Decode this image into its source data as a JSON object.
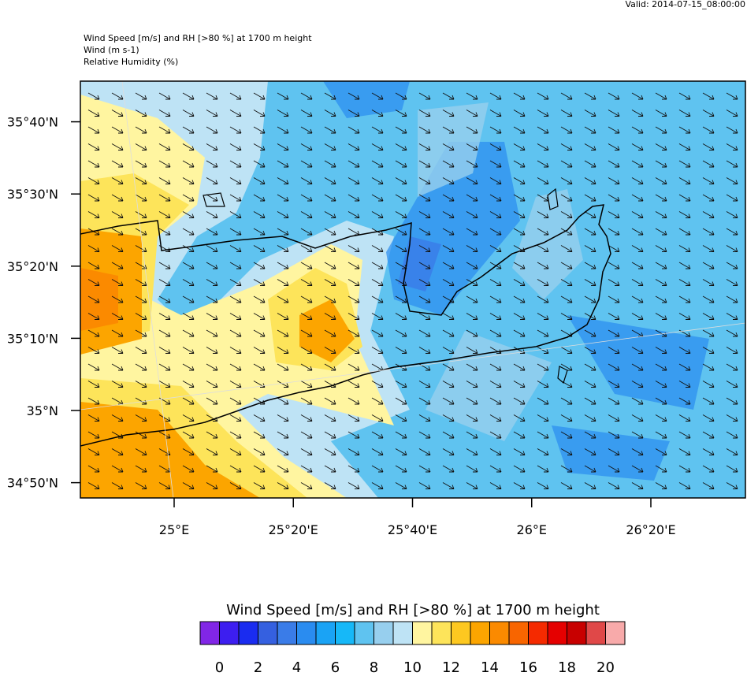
{
  "header": {
    "valid": "Valid: 2014-07-15_08:00:00",
    "title": "Wind Speed [m/s] and RH [>80 %] at 1700 m height",
    "line2": "Wind   (m s-1)",
    "line3": "Relative Humidity   (%)"
  },
  "map": {
    "lat_ticks": [
      {
        "value": 35.6667,
        "label": "35°40'N"
      },
      {
        "value": 35.5,
        "label": "35°30'N"
      },
      {
        "value": 35.3333,
        "label": "35°20'N"
      },
      {
        "value": 35.1667,
        "label": "35°10'N"
      },
      {
        "value": 35,
        "label": "35°N"
      },
      {
        "value": 34.8333,
        "label": "34°50'N"
      }
    ],
    "lon_ticks": [
      {
        "value": 25,
        "label": "25°E"
      },
      {
        "value": 25.3333,
        "label": "25°20'E"
      },
      {
        "value": 25.6667,
        "label": "25°40'E"
      },
      {
        "value": 26,
        "label": "26°E"
      },
      {
        "value": 26.3333,
        "label": "26°20'E"
      }
    ]
  },
  "colorbar": {
    "title": "Wind Speed [m/s] and RH [>80 %] at 1700 m height",
    "colors": [
      "#8126e6",
      "#3d1ef0",
      "#1a2cf0",
      "#3560e0",
      "#3a7ce8",
      "#2a8cf0",
      "#1aa3f5",
      "#16b8f8",
      "#5fc3f0",
      "#97cfee",
      "#bee3f5",
      "#fff5a0",
      "#fde45a",
      "#fdc820",
      "#fca500",
      "#fb8a00",
      "#f86500",
      "#f52a00",
      "#e50000",
      "#c80000",
      "#e04848",
      "#f8aaaa"
    ],
    "labels": [
      0,
      2,
      4,
      6,
      8,
      10,
      12,
      14,
      16,
      18,
      20
    ]
  }
}
